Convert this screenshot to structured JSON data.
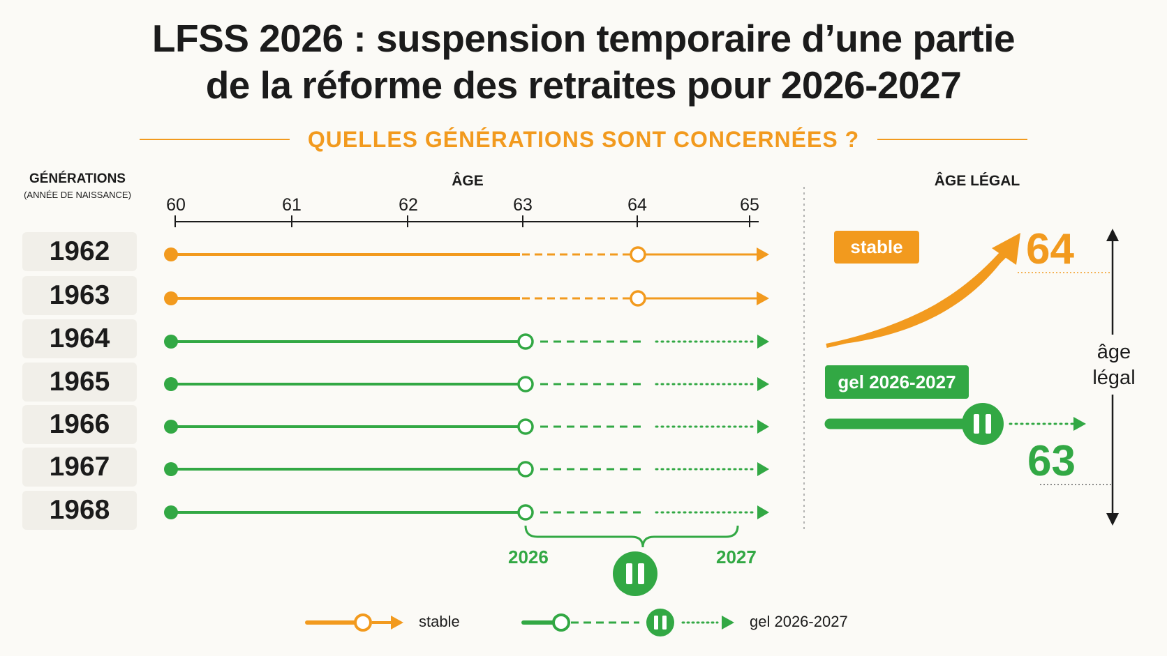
{
  "title": {
    "line1": "LFSS 2026 : suspension temporaire d’une partie",
    "line2": "de la réforme des retraites pour 2026-2027"
  },
  "subtitle": "QUELLES GÉNÉRATIONS SONT CONCERNÉES ?",
  "generations_header": {
    "title": "GÉNÉRATIONS",
    "note": "(ANNÉE DE NAISSANCE)"
  },
  "age_header": "ÂGE",
  "age_ticks": [
    "60",
    "61",
    "62",
    "63",
    "64",
    "65"
  ],
  "rows": [
    {
      "year": "1962",
      "type": "stable"
    },
    {
      "year": "1963",
      "type": "stable"
    },
    {
      "year": "1964",
      "type": "gel"
    },
    {
      "year": "1965",
      "type": "gel"
    },
    {
      "year": "1966",
      "type": "gel"
    },
    {
      "year": "1967",
      "type": "gel"
    },
    {
      "year": "1968",
      "type": "gel"
    }
  ],
  "freeze_years": {
    "start": "2026",
    "end": "2027"
  },
  "legal_age": {
    "header": "ÂGE LÉGAL",
    "stable_badge": "stable",
    "gel_badge": "gel 2026-2027",
    "age_high": "64",
    "age_low": "63",
    "axis_label_line1": "âge",
    "axis_label_line2": "légal"
  },
  "legend": {
    "stable": "stable",
    "gel": "gel 2026-2027"
  },
  "colors": {
    "orange": "#f29a1e",
    "green": "#32a844",
    "text": "#1b1b1b"
  }
}
